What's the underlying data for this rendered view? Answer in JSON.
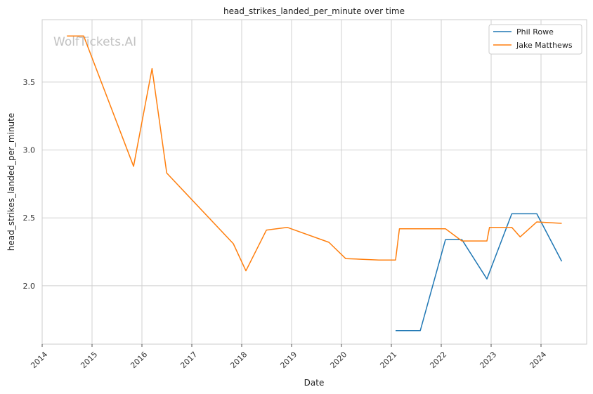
{
  "chart_data": {
    "type": "line",
    "title": "head_strikes_landed_per_minute over time",
    "xlabel": "Date",
    "ylabel": "head_strikes_landed_per_minute",
    "watermark": "WolfTickets.AI",
    "xlim": [
      "2014-01-01",
      "2024-12-01"
    ],
    "ylim": [
      1.57,
      3.96
    ],
    "x_ticks": [
      "2014",
      "2015",
      "2016",
      "2017",
      "2018",
      "2019",
      "2020",
      "2021",
      "2022",
      "2023",
      "2024"
    ],
    "y_ticks": [
      "2.0",
      "2.5",
      "3.0",
      "3.5"
    ],
    "y_tick_values": [
      2.0,
      2.5,
      3.0,
      3.5
    ],
    "grid": true,
    "legend_position": "top-right",
    "series": [
      {
        "name": "Phil Rowe",
        "color": "#1f77b4",
        "points": [
          {
            "x": "2021-02-01",
            "y": 1.67
          },
          {
            "x": "2021-08-01",
            "y": 1.67
          },
          {
            "x": "2022-02-01",
            "y": 2.34
          },
          {
            "x": "2022-06-01",
            "y": 2.34
          },
          {
            "x": "2022-12-01",
            "y": 2.05
          },
          {
            "x": "2023-06-01",
            "y": 2.53
          },
          {
            "x": "2023-12-01",
            "y": 2.53
          },
          {
            "x": "2024-06-01",
            "y": 2.18
          }
        ]
      },
      {
        "name": "Jake Matthews",
        "color": "#ff7f0e",
        "points": [
          {
            "x": "2014-07-01",
            "y": 3.84
          },
          {
            "x": "2014-11-01",
            "y": 3.84
          },
          {
            "x": "2015-11-01",
            "y": 2.88
          },
          {
            "x": "2016-03-15",
            "y": 3.6
          },
          {
            "x": "2016-07-01",
            "y": 2.83
          },
          {
            "x": "2017-11-01",
            "y": 2.31
          },
          {
            "x": "2018-02-01",
            "y": 2.11
          },
          {
            "x": "2018-07-01",
            "y": 2.41
          },
          {
            "x": "2018-12-01",
            "y": 2.43
          },
          {
            "x": "2019-10-01",
            "y": 2.32
          },
          {
            "x": "2020-02-01",
            "y": 2.2
          },
          {
            "x": "2020-10-01",
            "y": 2.19
          },
          {
            "x": "2021-02-01",
            "y": 2.19
          },
          {
            "x": "2021-03-01",
            "y": 2.42
          },
          {
            "x": "2022-02-01",
            "y": 2.42
          },
          {
            "x": "2022-06-01",
            "y": 2.33
          },
          {
            "x": "2022-12-01",
            "y": 2.33
          },
          {
            "x": "2022-12-20",
            "y": 2.43
          },
          {
            "x": "2023-06-01",
            "y": 2.43
          },
          {
            "x": "2023-08-01",
            "y": 2.36
          },
          {
            "x": "2023-12-01",
            "y": 2.47
          },
          {
            "x": "2024-06-01",
            "y": 2.46
          }
        ]
      }
    ]
  }
}
